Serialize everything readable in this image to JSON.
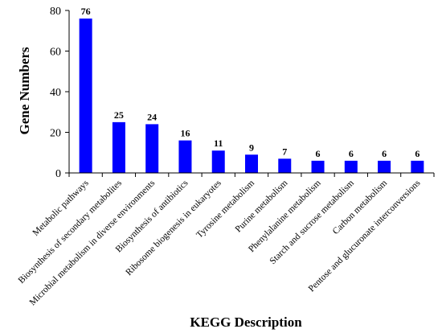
{
  "chart_data": {
    "type": "bar",
    "title": "",
    "xlabel": "KEGG Description",
    "ylabel": "Gene Numbers",
    "ylim": [
      0,
      80
    ],
    "yticks": [
      0,
      20,
      40,
      60,
      80
    ],
    "grid": false,
    "legend": "none",
    "bar_color": "#0000ff",
    "categories": [
      "Metabolic pathways",
      "Biosynthesis of secondary metabolites",
      "Microbial metabolism in diverse environments",
      "Biosynthesis of antibiotics",
      "Ribosome biogenesis in eukaryotes",
      "Tyrosine metabolism",
      "Purine metabolism",
      "Phenylalanine metabolism",
      "Starch and sucrose metabolism",
      "Carbon metabolism",
      "Pentose and glucuronate interconversions"
    ],
    "values": [
      76,
      25,
      24,
      16,
      11,
      9,
      7,
      6,
      6,
      6,
      6
    ]
  }
}
